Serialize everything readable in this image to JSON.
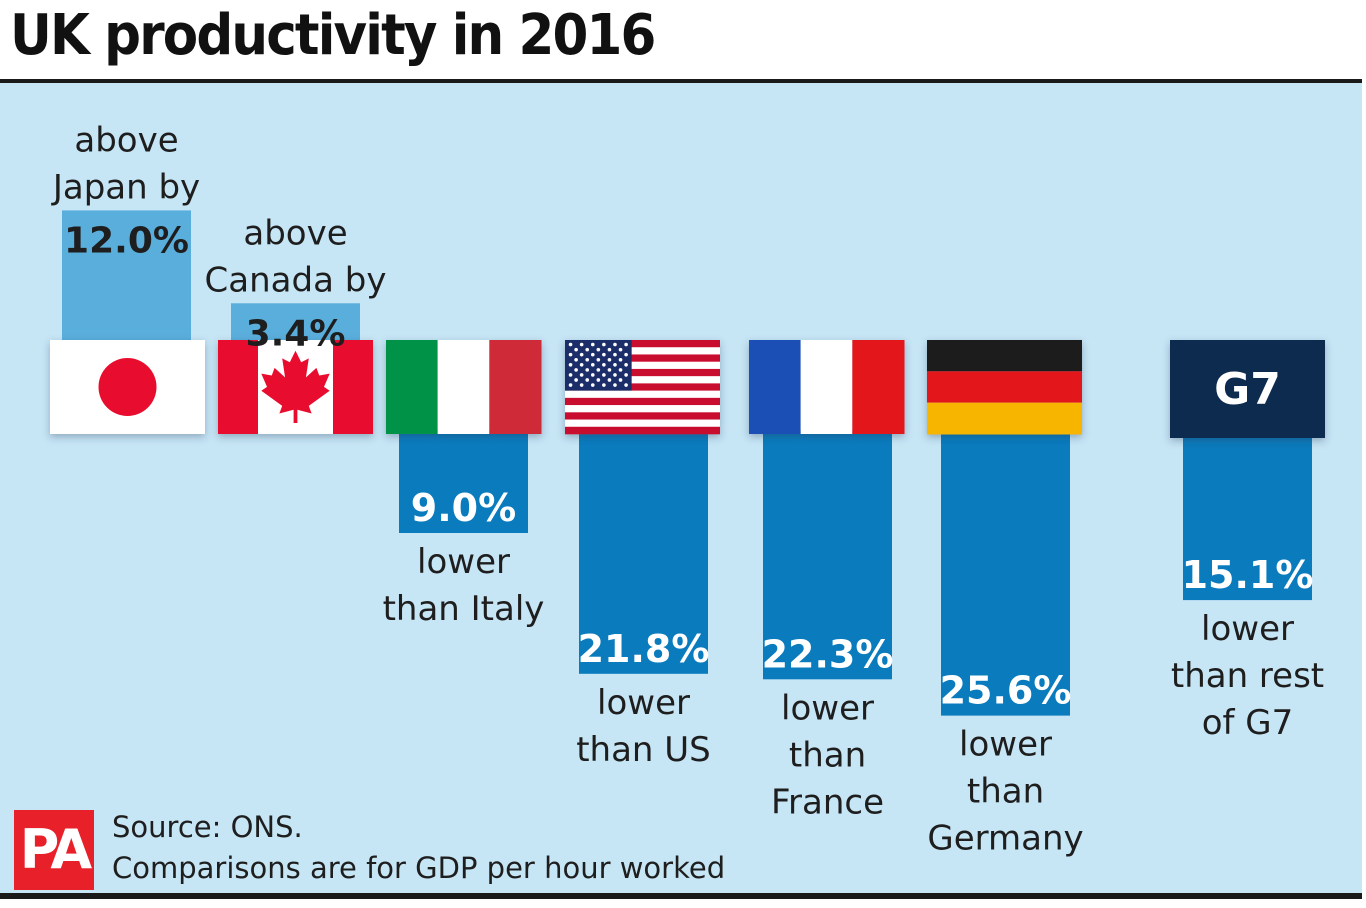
{
  "title": "UK productivity in 2016",
  "source_lines": [
    "Source: ONS.",
    "Comparisons are for GDP per hour worked"
  ],
  "logo_text": "PA",
  "colors": {
    "background": "#c6e5f5",
    "above_bar": "#5aaedc",
    "below_bar": "#0a7bbd",
    "text": "#1e1e1e",
    "logo": "#e8202a",
    "g7_box": "#0e2a4f"
  },
  "chart_data": {
    "type": "bar",
    "title": "UK productivity in 2016",
    "categories": [
      "Japan",
      "Canada",
      "Italy",
      "US",
      "France",
      "Germany",
      "G7"
    ],
    "values": [
      12.0,
      3.4,
      -9.0,
      -21.8,
      -22.3,
      -25.6,
      -15.1
    ],
    "unit": "%",
    "direction_note": "positive = UK above, negative = UK lower",
    "items": [
      {
        "id": "japan",
        "flag_icon": "japan-flag-icon",
        "value": 12.0,
        "value_label": "12.0%",
        "text_lines": [
          "above",
          "Japan by"
        ]
      },
      {
        "id": "canada",
        "flag_icon": "canada-flag-icon",
        "value": 3.4,
        "value_label": "3.4%",
        "text_lines": [
          "above",
          "Canada by"
        ]
      },
      {
        "id": "italy",
        "flag_icon": "italy-flag-icon",
        "value": -9.0,
        "value_label": "9.0%",
        "text_lines": [
          "lower",
          "than Italy"
        ]
      },
      {
        "id": "us",
        "flag_icon": "us-flag-icon",
        "value": -21.8,
        "value_label": "21.8%",
        "text_lines": [
          "lower",
          "than US"
        ]
      },
      {
        "id": "france",
        "flag_icon": "france-flag-icon",
        "value": -22.3,
        "value_label": "22.3%",
        "text_lines": [
          "lower",
          "than",
          "France"
        ]
      },
      {
        "id": "germany",
        "flag_icon": "germany-flag-icon",
        "value": -25.6,
        "value_label": "25.6%",
        "text_lines": [
          "lower",
          "than",
          "Germany"
        ]
      },
      {
        "id": "g7",
        "flag_icon": "g7-box-icon",
        "value": -15.1,
        "value_label": "15.1%",
        "text_lines": [
          "lower",
          "than rest",
          "of G7"
        ],
        "box_label": "G7"
      }
    ]
  }
}
